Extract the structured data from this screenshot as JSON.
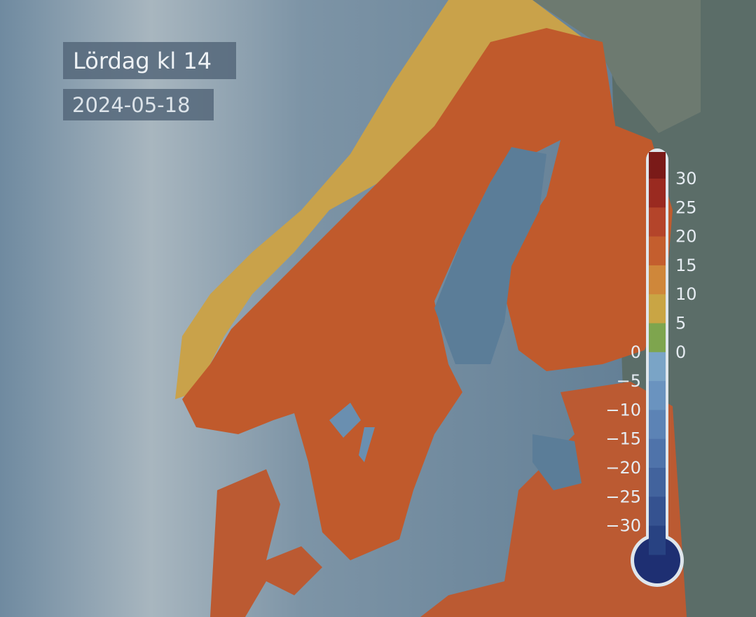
{
  "header": {
    "title": "Lördag kl 14",
    "date": "2024-05-18"
  },
  "legend": {
    "right_labels": [
      "30",
      "25",
      "20",
      "15",
      "10",
      "5",
      "0"
    ],
    "left_labels": [
      "0",
      "−5",
      "−10",
      "−15",
      "−20",
      "−25",
      "−30"
    ],
    "colors": [
      "#7a1a18",
      "#9a2a20",
      "#b4442a",
      "#c45e2e",
      "#cf873a",
      "#c9a544",
      "#7ea54e",
      "#7aa4c6",
      "#6a93bf",
      "#5c83b5",
      "#4f73aa",
      "#42639d",
      "#355290",
      "#284282",
      "#1f3474"
    ]
  }
}
